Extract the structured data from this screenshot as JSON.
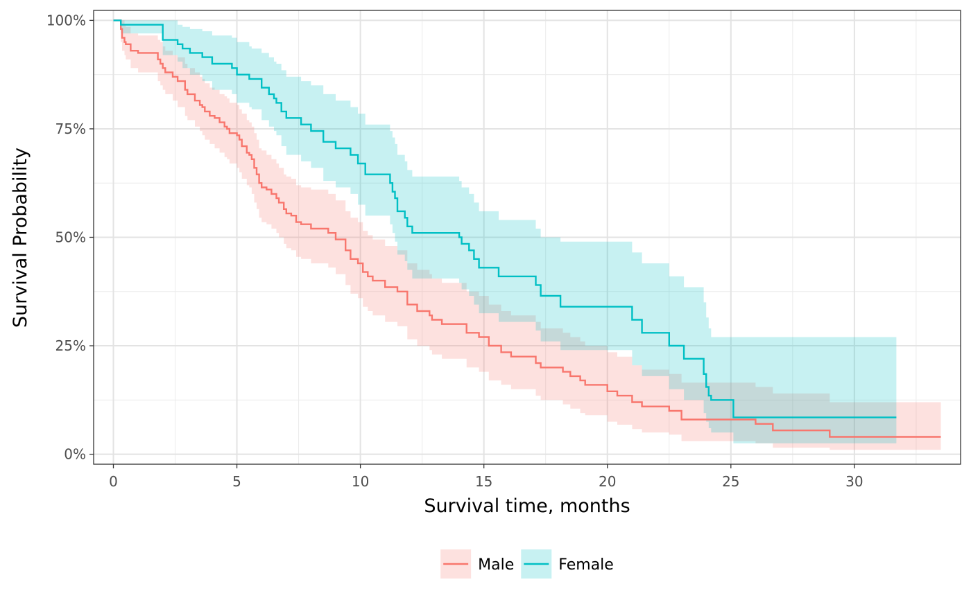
{
  "chart_data": {
    "type": "line",
    "subtype": "kaplan-meier",
    "xlabel": "Survival time, months",
    "ylabel": "Survival Probability",
    "xlim": [
      -0.8,
      34.3
    ],
    "ylim": [
      -0.023,
      1.023
    ],
    "x_ticks": [
      0,
      5,
      10,
      15,
      20,
      25,
      30
    ],
    "x_tick_labels": [
      "0",
      "5",
      "10",
      "15",
      "20",
      "25",
      "30"
    ],
    "y_ticks": [
      0,
      0.25,
      0.5,
      0.75,
      1.0
    ],
    "y_tick_labels": [
      "0%",
      "25%",
      "50%",
      "75%",
      "100%"
    ],
    "grid": true,
    "legend_position": "bottom",
    "series": [
      {
        "name": "Male",
        "color": "#F8766D",
        "fill": "#FDDEDB",
        "time": [
          0,
          0.3,
          0.35,
          0.45,
          0.5,
          0.7,
          1.0,
          1.8,
          1.9,
          2.0,
          2.1,
          2.4,
          2.6,
          2.9,
          3.0,
          3.3,
          3.5,
          3.6,
          3.7,
          3.9,
          4.1,
          4.3,
          4.5,
          4.6,
          4.7,
          5.0,
          5.1,
          5.2,
          5.4,
          5.5,
          5.6,
          5.7,
          5.8,
          5.9,
          6.0,
          6.2,
          6.4,
          6.6,
          6.7,
          6.9,
          7.0,
          7.2,
          7.4,
          7.6,
          8.0,
          8.7,
          9.0,
          9.4,
          9.6,
          9.9,
          10.1,
          10.3,
          10.5,
          11.0,
          11.5,
          11.9,
          12.3,
          12.8,
          12.9,
          13.3,
          14.3,
          14.8,
          15.2,
          15.7,
          16.1,
          17.1,
          17.3,
          18.2,
          18.5,
          18.9,
          19.1,
          20.0,
          20.4,
          21.0,
          21.4,
          22.5,
          23.0,
          26.0,
          26.7,
          29.0,
          33.5
        ],
        "surv": [
          1.0,
          0.98,
          0.96,
          0.95,
          0.945,
          0.93,
          0.925,
          0.91,
          0.9,
          0.89,
          0.88,
          0.87,
          0.86,
          0.84,
          0.83,
          0.815,
          0.805,
          0.8,
          0.79,
          0.78,
          0.775,
          0.765,
          0.755,
          0.75,
          0.74,
          0.735,
          0.725,
          0.71,
          0.695,
          0.69,
          0.68,
          0.66,
          0.645,
          0.625,
          0.615,
          0.61,
          0.6,
          0.59,
          0.58,
          0.565,
          0.555,
          0.55,
          0.535,
          0.53,
          0.52,
          0.51,
          0.495,
          0.47,
          0.45,
          0.44,
          0.42,
          0.41,
          0.4,
          0.385,
          0.375,
          0.345,
          0.33,
          0.32,
          0.31,
          0.3,
          0.28,
          0.27,
          0.25,
          0.235,
          0.225,
          0.21,
          0.2,
          0.19,
          0.18,
          0.17,
          0.16,
          0.145,
          0.135,
          0.12,
          0.11,
          0.1,
          0.08,
          0.07,
          0.055,
          0.04,
          0.04
        ],
        "lower": [
          1.0,
          0.95,
          0.93,
          0.92,
          0.91,
          0.89,
          0.88,
          0.86,
          0.85,
          0.84,
          0.83,
          0.815,
          0.8,
          0.78,
          0.77,
          0.755,
          0.745,
          0.735,
          0.725,
          0.715,
          0.705,
          0.695,
          0.685,
          0.68,
          0.67,
          0.66,
          0.65,
          0.635,
          0.62,
          0.615,
          0.6,
          0.58,
          0.565,
          0.545,
          0.535,
          0.53,
          0.52,
          0.51,
          0.5,
          0.485,
          0.475,
          0.47,
          0.455,
          0.45,
          0.44,
          0.43,
          0.415,
          0.39,
          0.37,
          0.36,
          0.34,
          0.33,
          0.32,
          0.305,
          0.295,
          0.265,
          0.25,
          0.24,
          0.23,
          0.22,
          0.2,
          0.19,
          0.17,
          0.16,
          0.15,
          0.135,
          0.125,
          0.115,
          0.105,
          0.095,
          0.09,
          0.075,
          0.068,
          0.058,
          0.05,
          0.045,
          0.03,
          0.025,
          0.015,
          0.01,
          0.01
        ],
        "upper": [
          1.0,
          1.0,
          1.0,
          0.99,
          0.985,
          0.97,
          0.965,
          0.955,
          0.95,
          0.94,
          0.93,
          0.92,
          0.915,
          0.9,
          0.89,
          0.88,
          0.87,
          0.865,
          0.855,
          0.845,
          0.84,
          0.83,
          0.825,
          0.82,
          0.81,
          0.805,
          0.795,
          0.785,
          0.77,
          0.765,
          0.755,
          0.74,
          0.725,
          0.705,
          0.7,
          0.69,
          0.68,
          0.67,
          0.66,
          0.645,
          0.64,
          0.635,
          0.62,
          0.615,
          0.61,
          0.6,
          0.585,
          0.56,
          0.545,
          0.535,
          0.515,
          0.505,
          0.495,
          0.48,
          0.47,
          0.44,
          0.425,
          0.415,
          0.405,
          0.395,
          0.375,
          0.365,
          0.345,
          0.33,
          0.32,
          0.305,
          0.29,
          0.28,
          0.27,
          0.26,
          0.25,
          0.235,
          0.225,
          0.205,
          0.195,
          0.185,
          0.165,
          0.155,
          0.14,
          0.12,
          0.12
        ]
      },
      {
        "name": "Female",
        "color": "#00BFC4",
        "fill": "#CCF2F3",
        "time": [
          0,
          0.3,
          2.0,
          2.6,
          2.8,
          3.1,
          3.6,
          4.0,
          4.8,
          5.0,
          5.5,
          5.6,
          6.0,
          6.3,
          6.5,
          6.6,
          6.8,
          7.0,
          7.6,
          8.0,
          8.5,
          9.0,
          9.6,
          9.9,
          10.2,
          11.2,
          11.3,
          11.4,
          11.5,
          11.8,
          11.9,
          12.1,
          14.0,
          14.1,
          14.4,
          14.6,
          14.8,
          15.6,
          17.1,
          17.3,
          18.1,
          19.5,
          21.0,
          21.4,
          22.5,
          23.1,
          23.9,
          24.0,
          24.1,
          24.2,
          25.1,
          31.7
        ],
        "surv": [
          1.0,
          0.99,
          0.955,
          0.945,
          0.935,
          0.925,
          0.915,
          0.9,
          0.89,
          0.875,
          0.865,
          0.865,
          0.845,
          0.83,
          0.82,
          0.81,
          0.79,
          0.775,
          0.76,
          0.745,
          0.72,
          0.705,
          0.69,
          0.67,
          0.645,
          0.625,
          0.605,
          0.59,
          0.56,
          0.545,
          0.525,
          0.51,
          0.5,
          0.485,
          0.47,
          0.45,
          0.43,
          0.41,
          0.39,
          0.365,
          0.34,
          0.34,
          0.31,
          0.28,
          0.25,
          0.22,
          0.185,
          0.155,
          0.135,
          0.125,
          0.085,
          0.085
        ],
        "lower": [
          1.0,
          0.97,
          0.92,
          0.905,
          0.89,
          0.875,
          0.86,
          0.84,
          0.83,
          0.81,
          0.8,
          0.795,
          0.77,
          0.755,
          0.745,
          0.735,
          0.71,
          0.69,
          0.675,
          0.66,
          0.63,
          0.615,
          0.6,
          0.575,
          0.55,
          0.53,
          0.51,
          0.49,
          0.46,
          0.445,
          0.425,
          0.405,
          0.395,
          0.38,
          0.365,
          0.345,
          0.325,
          0.305,
          0.285,
          0.26,
          0.24,
          0.24,
          0.205,
          0.18,
          0.15,
          0.125,
          0.095,
          0.075,
          0.06,
          0.05,
          0.025,
          0.025
        ],
        "upper": [
          1.0,
          1.0,
          1.0,
          0.99,
          0.985,
          0.98,
          0.975,
          0.965,
          0.96,
          0.95,
          0.94,
          0.935,
          0.925,
          0.915,
          0.905,
          0.9,
          0.885,
          0.87,
          0.86,
          0.85,
          0.83,
          0.815,
          0.8,
          0.785,
          0.76,
          0.745,
          0.73,
          0.715,
          0.69,
          0.675,
          0.655,
          0.64,
          0.63,
          0.615,
          0.6,
          0.58,
          0.56,
          0.54,
          0.52,
          0.5,
          0.49,
          0.49,
          0.465,
          0.44,
          0.41,
          0.385,
          0.35,
          0.315,
          0.29,
          0.27,
          0.27,
          0.27
        ]
      }
    ]
  }
}
